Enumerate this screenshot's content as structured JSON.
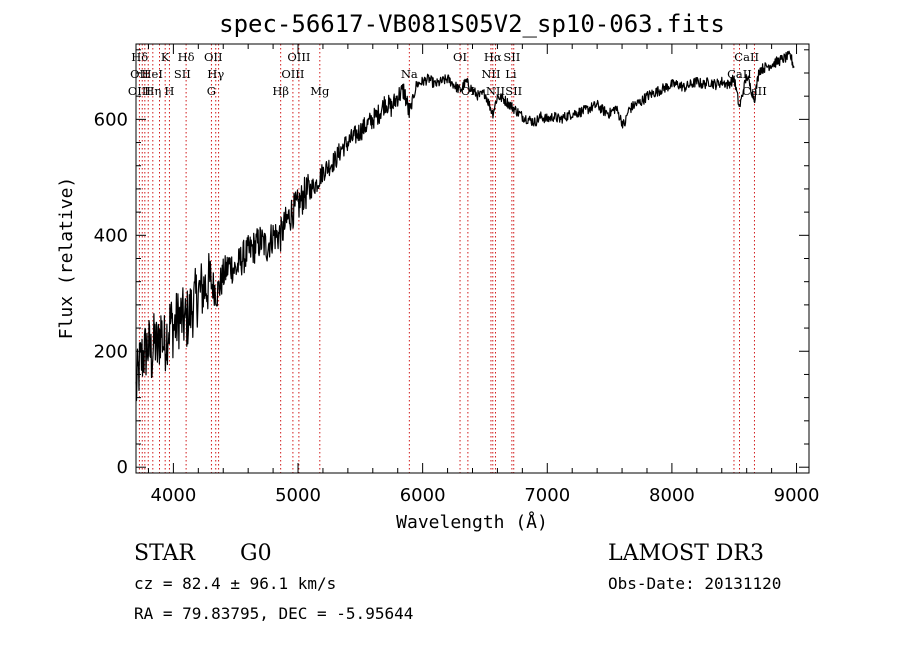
{
  "chart_data": {
    "type": "line",
    "title": "spec-56617-VB081S05V2_sp10-063.fits",
    "xlabel": "Wavelength (Å)",
    "ylabel": "Flux (relative)",
    "xlim": [
      3700,
      9100
    ],
    "ylim": [
      -10,
      730
    ],
    "xticks": [
      4000,
      5000,
      6000,
      7000,
      8000,
      9000
    ],
    "yticks": [
      0,
      200,
      400,
      600
    ],
    "x_minor_step": 200,
    "y_minor_step": 40,
    "grid": false,
    "series": [
      {
        "name": "flux",
        "x": [
          3700,
          3725,
          3750,
          3775,
          3800,
          3825,
          3850,
          3875,
          3900,
          3925,
          3950,
          3975,
          4000,
          4050,
          4100,
          4150,
          4200,
          4250,
          4300,
          4350,
          4400,
          4450,
          4500,
          4550,
          4600,
          4650,
          4700,
          4750,
          4800,
          4861,
          4900,
          4950,
          5000,
          5050,
          5100,
          5150,
          5200,
          5250,
          5300,
          5350,
          5400,
          5450,
          5500,
          5550,
          5600,
          5650,
          5700,
          5750,
          5800,
          5850,
          5893,
          5950,
          6000,
          6050,
          6100,
          6150,
          6200,
          6250,
          6300,
          6350,
          6400,
          6450,
          6500,
          6563,
          6600,
          6650,
          6700,
          6750,
          6800,
          6850,
          6900,
          6950,
          7000,
          7050,
          7100,
          7150,
          7200,
          7250,
          7300,
          7350,
          7400,
          7450,
          7500,
          7550,
          7600,
          7620,
          7650,
          7700,
          7750,
          7800,
          7850,
          7900,
          7950,
          8000,
          8050,
          8100,
          8150,
          8200,
          8250,
          8300,
          8350,
          8400,
          8450,
          8500,
          8542,
          8600,
          8662,
          8700,
          8750,
          8800,
          8850,
          8900,
          8950,
          8980
        ],
        "values": [
          130,
          170,
          190,
          200,
          210,
          190,
          220,
          200,
          240,
          210,
          230,
          250,
          240,
          260,
          250,
          275,
          300,
          310,
          320,
          300,
          330,
          350,
          340,
          360,
          370,
          380,
          390,
          380,
          400,
          400,
          420,
          440,
          450,
          470,
          480,
          490,
          510,
          520,
          530,
          550,
          560,
          570,
          580,
          590,
          600,
          610,
          630,
          620,
          640,
          650,
          610,
          660,
          665,
          670,
          660,
          665,
          670,
          660,
          650,
          665,
          650,
          640,
          645,
          610,
          640,
          635,
          625,
          615,
          605,
          600,
          595,
          605,
          600,
          605,
          600,
          605,
          610,
          612,
          615,
          620,
          625,
          615,
          610,
          620,
          595,
          590,
          615,
          625,
          630,
          640,
          645,
          650,
          655,
          660,
          660,
          655,
          660,
          665,
          660,
          665,
          660,
          665,
          660,
          670,
          620,
          675,
          635,
          685,
          690,
          695,
          700,
          705,
          710,
          690
        ]
      }
    ],
    "line_labels": [
      {
        "name": "Hδ",
        "x": 3730,
        "row": 0
      },
      {
        "name": "K",
        "x": 3934,
        "row": 0
      },
      {
        "name": "Hδ",
        "x": 4102,
        "row": 0
      },
      {
        "name": "OII",
        "x": 4320,
        "row": 0
      },
      {
        "name": "OIII",
        "x": 5007,
        "row": 0
      },
      {
        "name": "OI",
        "x": 6300,
        "row": 0
      },
      {
        "name": "Hα",
        "x": 6563,
        "row": 0
      },
      {
        "name": "SII",
        "x": 6716,
        "row": 0
      },
      {
        "name": "CaII",
        "x": 8600,
        "row": 0
      },
      {
        "name": "OII",
        "x": 3727,
        "row": 1
      },
      {
        "name": "HeI",
        "x": 3830,
        "row": 1
      },
      {
        "name": "SII",
        "x": 4072,
        "row": 1
      },
      {
        "name": "Hγ",
        "x": 4340,
        "row": 1
      },
      {
        "name": "OIII",
        "x": 4959,
        "row": 1
      },
      {
        "name": "Na",
        "x": 5893,
        "row": 1
      },
      {
        "name": "NII",
        "x": 6548,
        "row": 1
      },
      {
        "name": "Li",
        "x": 6708,
        "row": 1
      },
      {
        "name": "CaII",
        "x": 8542,
        "row": 1
      },
      {
        "name": "OIII",
        "x": 3727,
        "row": 2
      },
      {
        "name": "Hη",
        "x": 3835,
        "row": 2
      },
      {
        "name": "H",
        "x": 3968,
        "row": 2
      },
      {
        "name": "G",
        "x": 4305,
        "row": 2
      },
      {
        "name": "Hβ",
        "x": 4861,
        "row": 2
      },
      {
        "name": "Mg",
        "x": 5175,
        "row": 2
      },
      {
        "name": "OI",
        "x": 6363,
        "row": 2
      },
      {
        "name": "NII",
        "x": 6584,
        "row": 2
      },
      {
        "name": "SII",
        "x": 6731,
        "row": 2
      },
      {
        "name": "CaII",
        "x": 8662,
        "row": 2
      }
    ],
    "line_marker_x": [
      3727,
      3750,
      3771,
      3798,
      3835,
      3889,
      3934,
      3968,
      4102,
      4305,
      4340,
      4363,
      4861,
      4959,
      5007,
      5175,
      5893,
      6300,
      6363,
      6548,
      6563,
      6584,
      6716,
      6731,
      8498,
      8542,
      8662
    ]
  },
  "info": {
    "object_class": "STAR",
    "subclass": "G0",
    "survey": "LAMOST DR3",
    "redshift": "cz =  82.4 ± 96.1 km/s",
    "obs_date": "Obs-Date: 20131120",
    "coordinates": "RA =  79.83795, DEC =  -5.95644"
  },
  "colors": {
    "spectrum": "#000000",
    "marker": "#cc0000",
    "axis": "#000000",
    "background": "#ffffff"
  }
}
